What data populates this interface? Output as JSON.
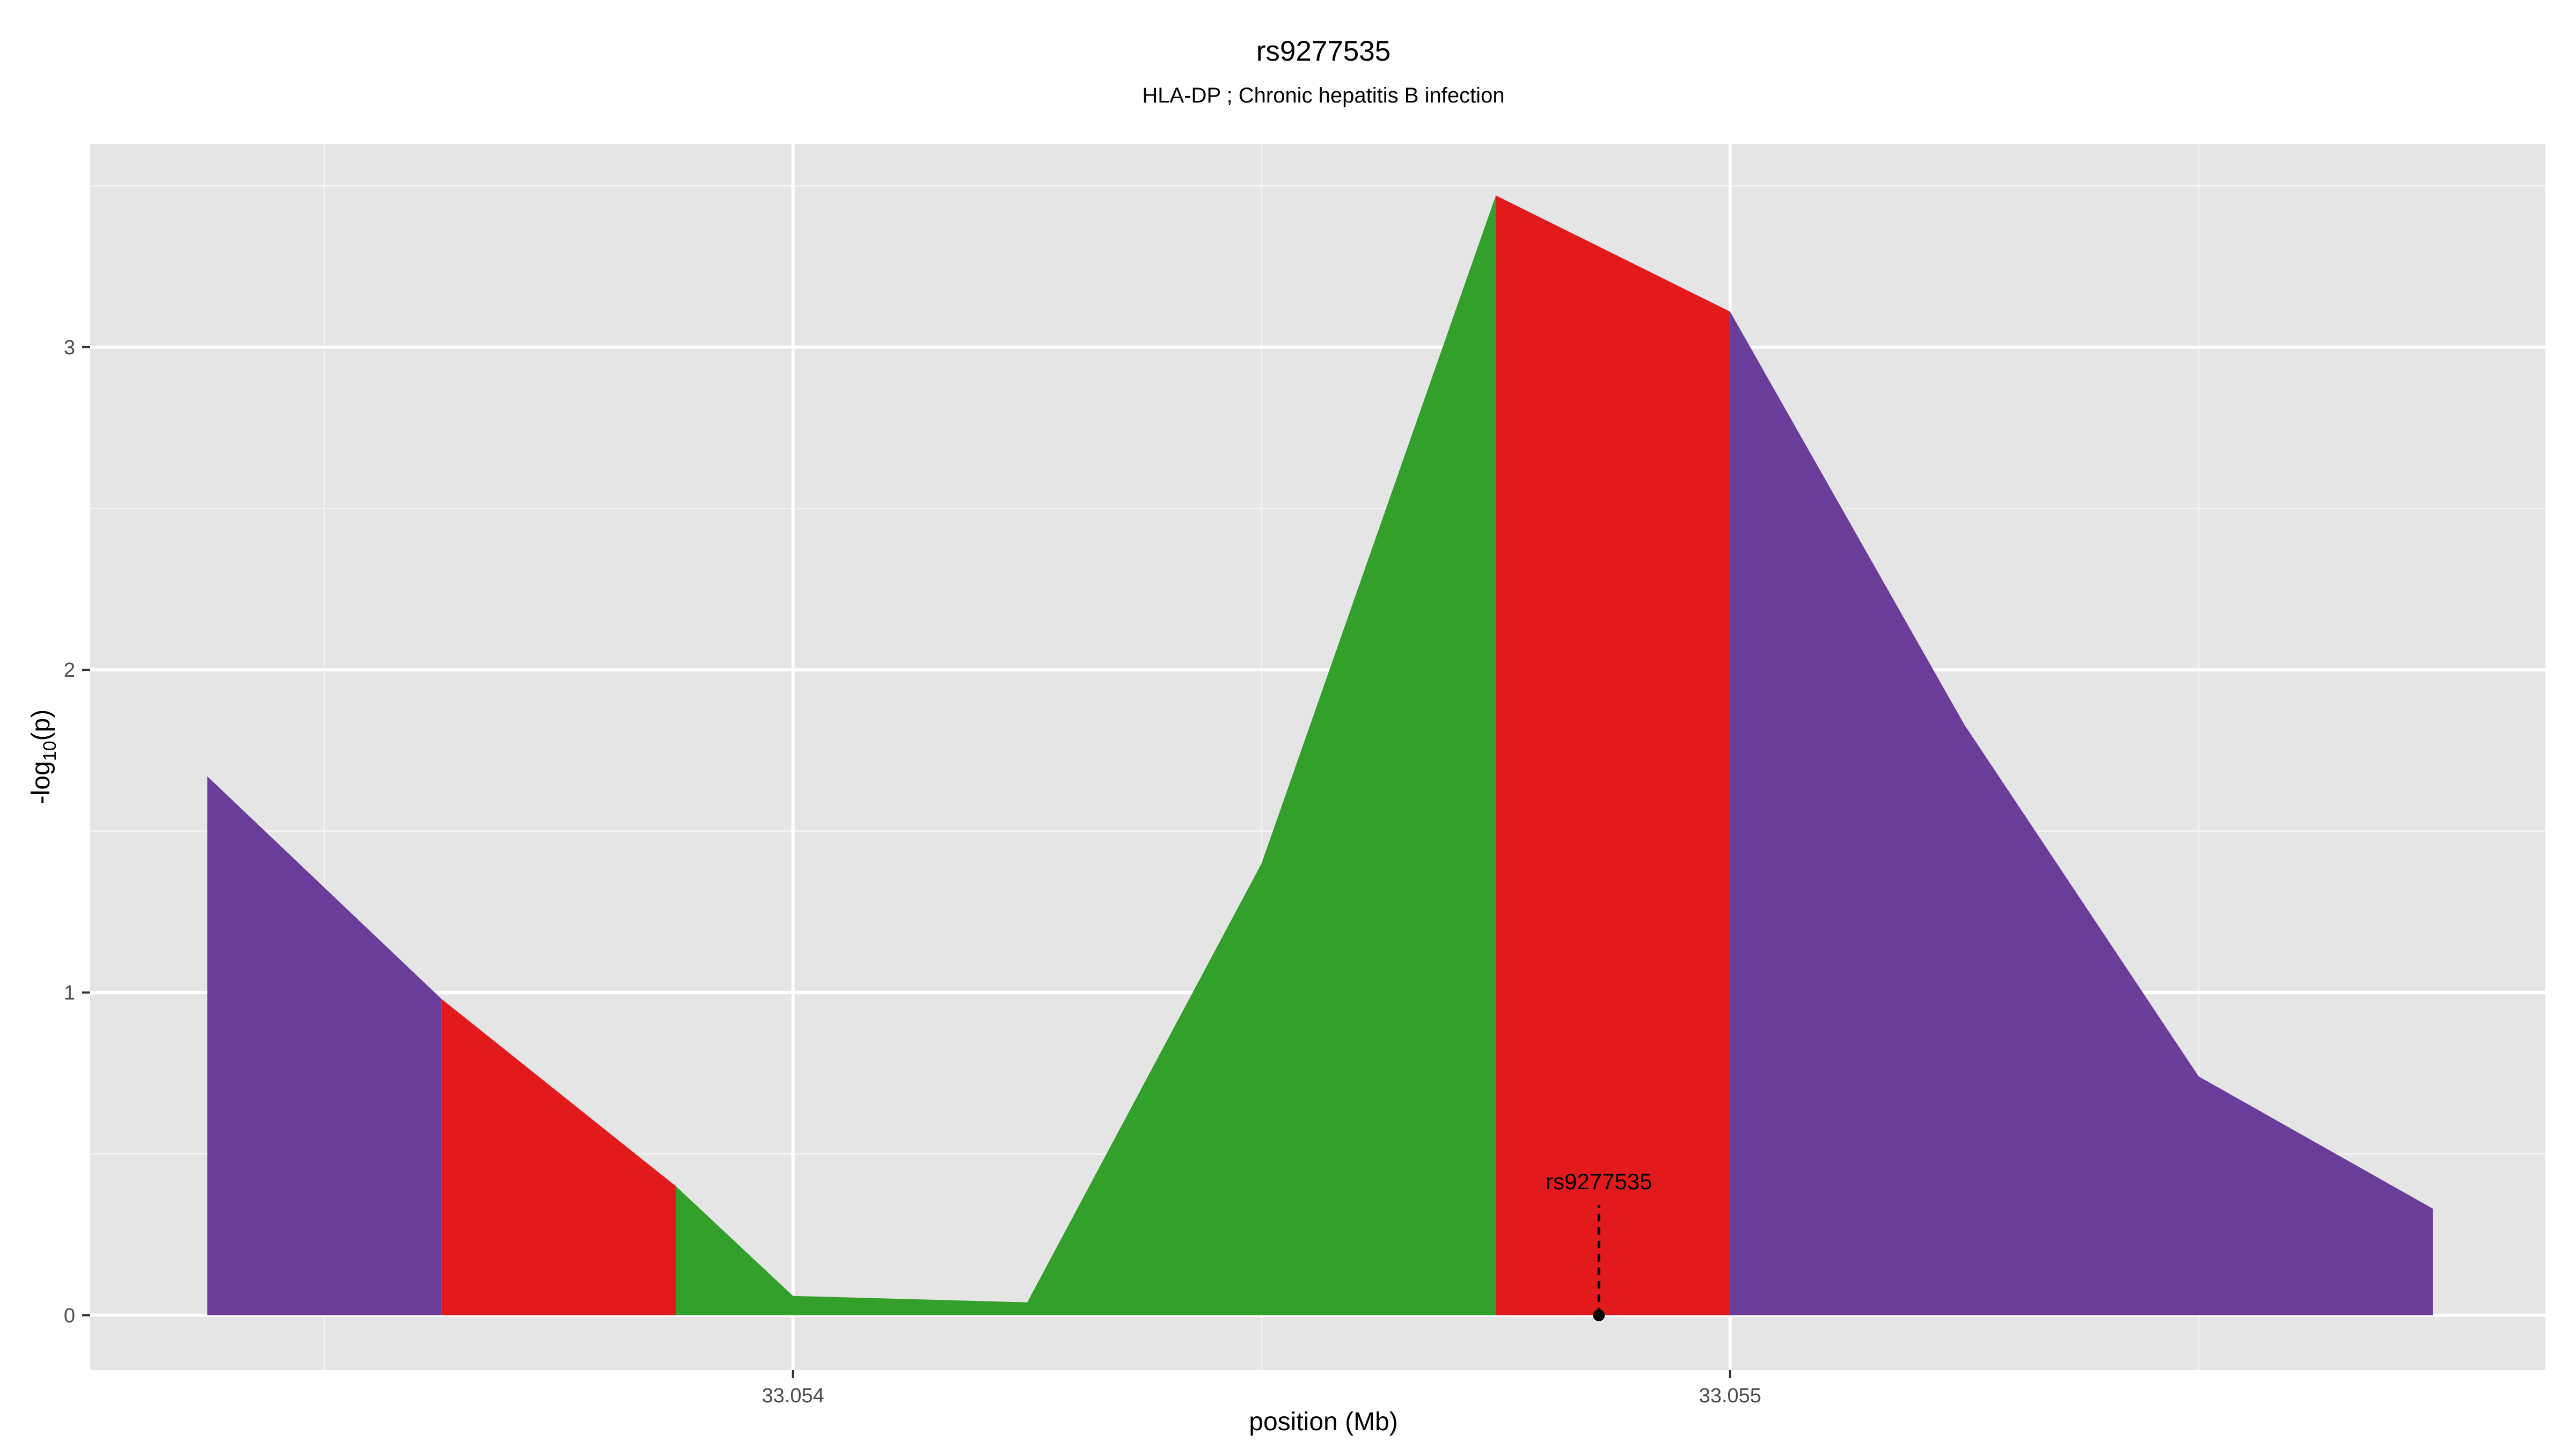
{
  "chart_data": {
    "type": "area",
    "title": "rs9277535",
    "subtitle": "HLA-DP ; Chronic hepatitis B infection",
    "xlabel": "position (Mb)",
    "ylabel_main": "-log",
    "ylabel_sub": "10",
    "ylabel_tail": "(p)",
    "xlim": [
      33.05325,
      33.05587
    ],
    "ylim": [
      -0.17,
      3.63
    ],
    "x_ticks": [
      33.054,
      33.055
    ],
    "x_tick_labels": [
      "33.054",
      "33.055"
    ],
    "x_minor_ticks": [
      33.0535,
      33.0545,
      33.0555
    ],
    "y_ticks": [
      0,
      1,
      2,
      3
    ],
    "y_tick_labels": [
      "0",
      "1",
      "2",
      "3"
    ],
    "y_minor_ticks": [
      0.5,
      1.5,
      2.5,
      3.5
    ],
    "grid": true,
    "colors": {
      "purple": "#6a3d9a",
      "red": "#e31a1c",
      "green": "#33a02c",
      "panel": "#e5e5e5"
    },
    "points": [
      {
        "x": 33.053375,
        "y": 1.67
      },
      {
        "x": 33.053625,
        "y": 0.98
      },
      {
        "x": 33.053875,
        "y": 0.4
      },
      {
        "x": 33.054,
        "y": 0.06
      },
      {
        "x": 33.05425,
        "y": 0.04
      },
      {
        "x": 33.0545,
        "y": 1.4
      },
      {
        "x": 33.05475,
        "y": 3.47
      },
      {
        "x": 33.055,
        "y": 3.11
      },
      {
        "x": 33.05525,
        "y": 1.83
      },
      {
        "x": 33.0555,
        "y": 0.74
      },
      {
        "x": 33.05575,
        "y": 0.33
      }
    ],
    "segments": [
      {
        "from": 33.053375,
        "to": 33.053625,
        "color": "purple"
      },
      {
        "from": 33.053625,
        "to": 33.053875,
        "color": "red"
      },
      {
        "from": 33.053875,
        "to": 33.05475,
        "color": "green"
      },
      {
        "from": 33.05475,
        "to": 33.055,
        "color": "red"
      },
      {
        "from": 33.055,
        "to": 33.05575,
        "color": "purple"
      }
    ],
    "annotation": {
      "label": "rs9277535",
      "x": 33.05486,
      "y": 0
    }
  }
}
